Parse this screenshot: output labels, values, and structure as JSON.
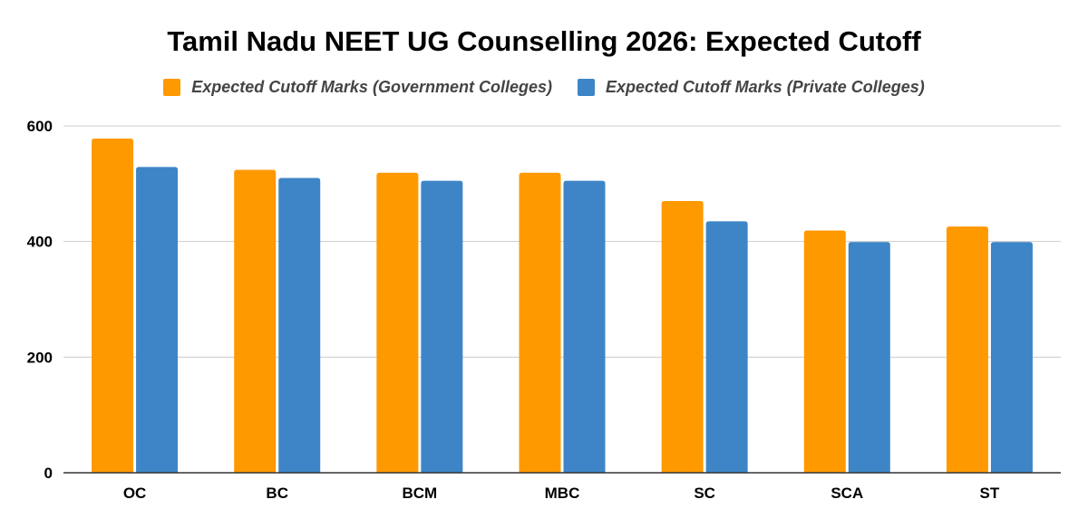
{
  "chart_data": {
    "type": "bar",
    "title": "Tamil Nadu NEET UG Counselling 2026: Expected Cutoff",
    "xlabel": "",
    "ylabel": "",
    "categories": [
      "OC",
      "BC",
      "BCM",
      "MBC",
      "SC",
      "SCA",
      "ST"
    ],
    "series": [
      {
        "name": "Expected Cutoff Marks (Government Colleges)",
        "color": "#FF9900",
        "values": [
          578,
          524,
          519,
          519,
          470,
          419,
          426
        ]
      },
      {
        "name": "Expected Cutoff Marks (Private Colleges)",
        "color": "#3D85C6",
        "values": [
          529,
          510,
          505,
          505,
          435,
          399,
          399
        ]
      }
    ],
    "ylim": [
      0,
      600
    ],
    "yticks": [
      0,
      200,
      400,
      600
    ],
    "grid": true,
    "legend_position": "top"
  }
}
